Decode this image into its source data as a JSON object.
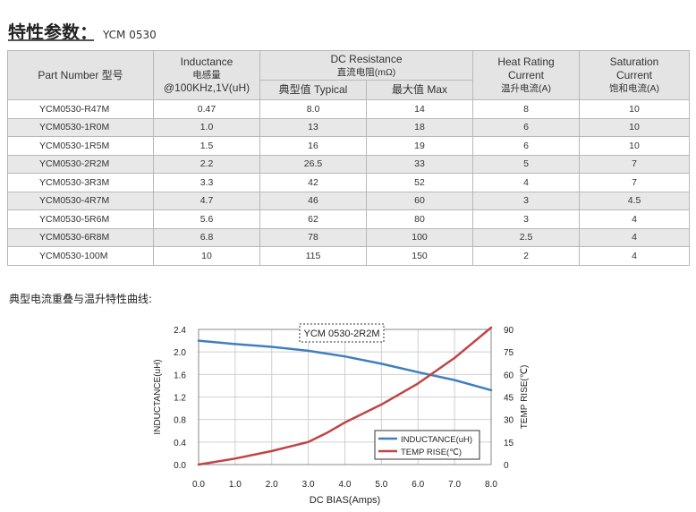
{
  "heading": {
    "title": "特性参数：",
    "model": "YCM 0530"
  },
  "table": {
    "header": {
      "part_number": "Part Number  型号",
      "inductance": {
        "en": "Inductance",
        "cn": "电感量",
        "cond": "@100KHz,1V(uH)"
      },
      "dcr": {
        "en": "DC Resistance",
        "cn": "直流电阻(mΩ)",
        "typ": "典型值 Typical",
        "max": "最大值 Max"
      },
      "heat": {
        "l1": "Heat Rating",
        "l2": "Current",
        "cn": "温升电流(A)"
      },
      "sat": {
        "l1": "Saturation",
        "l2": "Current",
        "cn": "饱和电流(A)"
      }
    },
    "rows": [
      {
        "part": "YCM0530-R47M",
        "ind": "0.47",
        "dcr_typ": "8.0",
        "dcr_max": "14",
        "heat": "8",
        "sat": "10"
      },
      {
        "part": "YCM0530-1R0M",
        "ind": "1.0",
        "dcr_typ": "13",
        "dcr_max": "18",
        "heat": "6",
        "sat": "10"
      },
      {
        "part": "YCM0530-1R5M",
        "ind": "1.5",
        "dcr_typ": "16",
        "dcr_max": "19",
        "heat": "6",
        "sat": "10"
      },
      {
        "part": "YCM0530-2R2M",
        "ind": "2.2",
        "dcr_typ": "26.5",
        "dcr_max": "33",
        "heat": "5",
        "sat": "7"
      },
      {
        "part": "YCM0530-3R3M",
        "ind": "3.3",
        "dcr_typ": "42",
        "dcr_max": "52",
        "heat": "4",
        "sat": "7"
      },
      {
        "part": "YCM0530-4R7M",
        "ind": "4.7",
        "dcr_typ": "46",
        "dcr_max": "60",
        "heat": "3",
        "sat": "4.5"
      },
      {
        "part": "YCM0530-5R6M",
        "ind": "5.6",
        "dcr_typ": "62",
        "dcr_max": "80",
        "heat": "3",
        "sat": "4"
      },
      {
        "part": "YCM0530-6R8M",
        "ind": "6.8",
        "dcr_typ": "78",
        "dcr_max": "100",
        "heat": "2.5",
        "sat": "4"
      },
      {
        "part": "YCM0530-100M",
        "ind": "10",
        "dcr_typ": "115",
        "dcr_max": "150",
        "heat": "2",
        "sat": "4"
      }
    ]
  },
  "curves_title": "典型电流重叠与温升特性曲线:",
  "chart_data": {
    "type": "line",
    "title": "YCM 0530-2R2M",
    "xlabel": "DC BIAS(Amps)",
    "ylabel": "INDUCTANCE(uH)",
    "y2label": "TEMP RISE(℃)",
    "xlim": [
      0,
      8
    ],
    "ylim": [
      0,
      2.4
    ],
    "y2lim": [
      0,
      90
    ],
    "x_ticks": [
      "0.0",
      "1.0",
      "2.0",
      "3.0",
      "4.0",
      "5.0",
      "6.0",
      "7.0",
      "8.0"
    ],
    "y_ticks": [
      "0.0",
      "0.4",
      "0.8",
      "1.2",
      "1.6",
      "2.0",
      "2.4"
    ],
    "y2_ticks": [
      "0",
      "15",
      "30",
      "45",
      "60",
      "75",
      "90"
    ],
    "grid": true,
    "legend_position": "bottom-right",
    "series": [
      {
        "name": "INDUCTANCE(uH)",
        "axis": "left",
        "color": "#3f7fbf",
        "x": [
          0,
          1,
          2,
          3,
          4,
          5,
          6,
          7,
          8
        ],
        "y": [
          2.2,
          2.14,
          2.09,
          2.02,
          1.92,
          1.79,
          1.64,
          1.5,
          1.32
        ]
      },
      {
        "name": "TEMP RISE(℃)",
        "axis": "right",
        "color": "#bf4545",
        "x": [
          0,
          1,
          2,
          3,
          3.5,
          4,
          5,
          6,
          7,
          8
        ],
        "y": [
          0,
          4,
          9,
          15,
          21,
          28,
          40,
          54,
          71,
          92
        ]
      }
    ]
  }
}
